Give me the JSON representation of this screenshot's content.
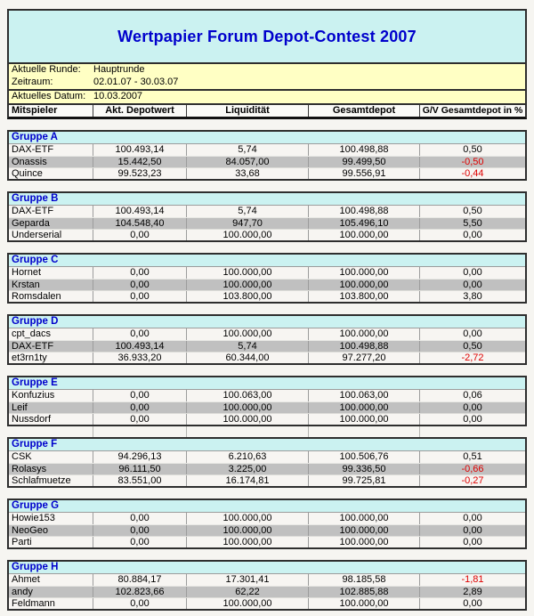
{
  "title": "Wertpapier Forum Depot-Contest 2007",
  "info": {
    "rows": [
      {
        "label": "Aktuelle Runde:",
        "value": "Hauptrunde"
      },
      {
        "label": "Zeitraum:",
        "value": "02.01.07 - 30.03.07"
      }
    ],
    "date": {
      "label": "Aktuelles Datum:",
      "value": "10.03.2007"
    }
  },
  "columns": [
    "Mitspieler",
    "Akt. Depotwert",
    "Liquidität",
    "Gesamtdepot",
    "G/V Gesamtdepot in %"
  ],
  "groups": [
    {
      "name": "Gruppe A",
      "players": [
        {
          "name": "DAX-ETF",
          "cells": [
            "100.493,14",
            "5,74",
            "100.498,88",
            "0,50"
          ]
        },
        {
          "name": "Onassis",
          "cells": [
            "15.442,50",
            "84.057,00",
            "99.499,50",
            "-0,50"
          ]
        },
        {
          "name": "Quince",
          "cells": [
            "99.523,23",
            "33,68",
            "99.556,91",
            "-0,44"
          ]
        }
      ]
    },
    {
      "name": "Gruppe B",
      "players": [
        {
          "name": "DAX-ETF",
          "cells": [
            "100.493,14",
            "5,74",
            "100.498,88",
            "0,50"
          ]
        },
        {
          "name": "Geparda",
          "cells": [
            "104.548,40",
            "947,70",
            "105.496,10",
            "5,50"
          ]
        },
        {
          "name": "Underserial",
          "cells": [
            "0,00",
            "100.000,00",
            "100.000,00",
            "0,00"
          ]
        }
      ]
    },
    {
      "name": "Gruppe C",
      "players": [
        {
          "name": "Hornet",
          "cells": [
            "0,00",
            "100.000,00",
            "100.000,00",
            "0,00"
          ]
        },
        {
          "name": "Krstan",
          "cells": [
            "0,00",
            "100.000,00",
            "100.000,00",
            "0,00"
          ]
        },
        {
          "name": "Romsdalen",
          "cells": [
            "0,00",
            "103.800,00",
            "103.800,00",
            "3,80"
          ]
        }
      ]
    },
    {
      "name": "Gruppe D",
      "players": [
        {
          "name": "cpt_dacs",
          "cells": [
            "0,00",
            "100.000,00",
            "100.000,00",
            "0,00"
          ]
        },
        {
          "name": "DAX-ETF",
          "cells": [
            "100.493,14",
            "5,74",
            "100.498,88",
            "0,50"
          ]
        },
        {
          "name": "et3rn1ty",
          "cells": [
            "36.933,20",
            "60.344,00",
            "97.277,20",
            "-2,72"
          ]
        }
      ]
    },
    {
      "name": "Gruppe E",
      "players": [
        {
          "name": "Konfuzius",
          "cells": [
            "0,00",
            "100.063,00",
            "100.063,00",
            "0,06"
          ]
        },
        {
          "name": "Leif",
          "cells": [
            "0,00",
            "100.000,00",
            "100.000,00",
            "0,00"
          ]
        },
        {
          "name": "Nussdorf",
          "cells": [
            "0,00",
            "100.000,00",
            "100.000,00",
            "0,00"
          ]
        }
      ]
    },
    {
      "name": "Gruppe F",
      "players": [
        {
          "name": "CSK",
          "cells": [
            "94.296,13",
            "6.210,63",
            "100.506,76",
            "0,51"
          ]
        },
        {
          "name": "Rolasys",
          "cells": [
            "96.111,50",
            "3.225,00",
            "99.336,50",
            "-0,66"
          ]
        },
        {
          "name": "Schlafmuetze",
          "cells": [
            "83.551,00",
            "16.174,81",
            "99.725,81",
            "-0,27"
          ]
        }
      ]
    },
    {
      "name": "Gruppe G",
      "players": [
        {
          "name": "Howie153",
          "cells": [
            "0,00",
            "100.000,00",
            "100.000,00",
            "0,00"
          ]
        },
        {
          "name": "NeoGeo",
          "cells": [
            "0,00",
            "100.000,00",
            "100.000,00",
            "0,00"
          ]
        },
        {
          "name": "Parti",
          "cells": [
            "0,00",
            "100.000,00",
            "100.000,00",
            "0,00"
          ]
        }
      ]
    },
    {
      "name": "Gruppe H",
      "players": [
        {
          "name": "Ahmet",
          "cells": [
            "80.884,17",
            "17.301,41",
            "98.185,58",
            "-1,81"
          ]
        },
        {
          "name": "andy",
          "cells": [
            "102.823,66",
            "62,22",
            "102.885,88",
            "2,89"
          ]
        },
        {
          "name": "Feldmann",
          "cells": [
            "0,00",
            "100.000,00",
            "100.000,00",
            "0,00"
          ]
        }
      ]
    }
  ],
  "colors": {
    "page_bg": "#f6f5f1",
    "title_bg": "#cbf2f1",
    "group_header_bg": "#cbf2f1",
    "info_bg": "#ffffc4",
    "header_row_bg": "#fafaf7",
    "row_bg": "#f7f5f2",
    "row_alt_bg": "#c0c0c0",
    "accent_blue": "#0000cc",
    "negative": "#de0000",
    "border_dark": "#2e2e2e"
  }
}
